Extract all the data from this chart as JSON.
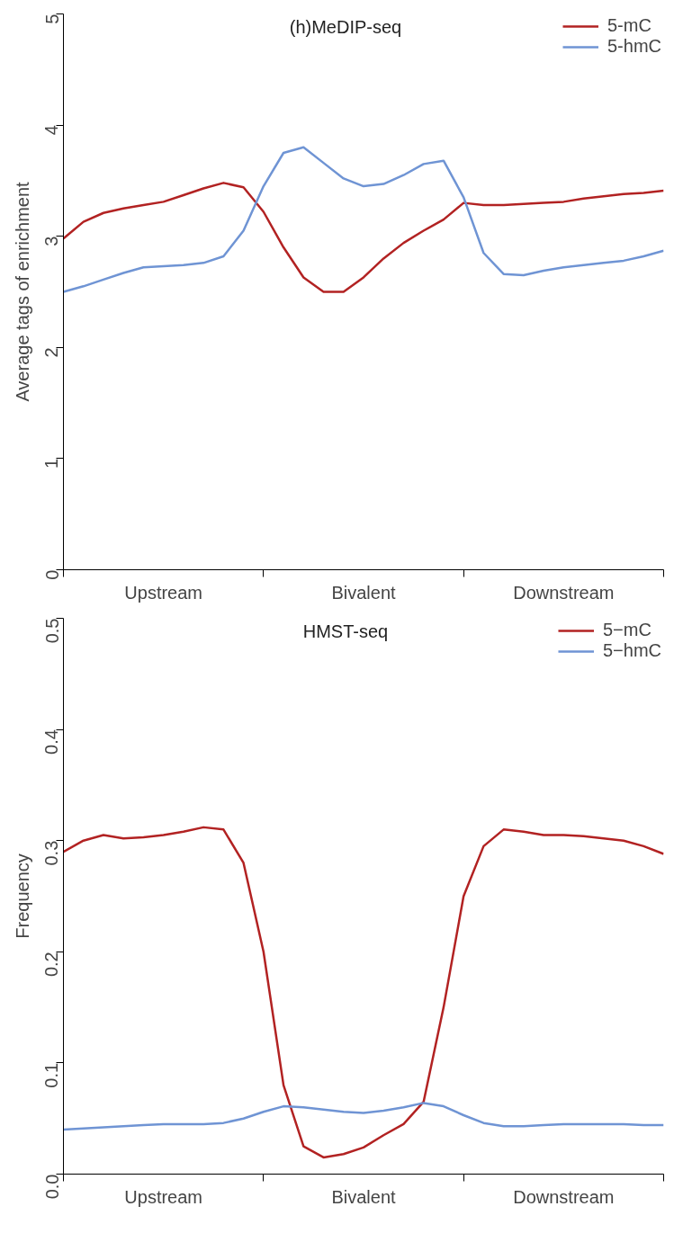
{
  "chart_data": [
    {
      "type": "line",
      "title": "(h)MeDIP-seq",
      "ylabel": "Average tags of enrichment",
      "ylim": [
        0,
        5
      ],
      "yticks": [
        0,
        1,
        2,
        3,
        4,
        5
      ],
      "categories": [
        null,
        null,
        null,
        null,
        null,
        null,
        null,
        null,
        null,
        null,
        null,
        null,
        null,
        null,
        null,
        null,
        null,
        null,
        null,
        null,
        null,
        null,
        null,
        null,
        null,
        null,
        null,
        null,
        null,
        null,
        null
      ],
      "annotations": [
        "Upstream",
        "Bivalent",
        "Downstream"
      ],
      "legend": "top right",
      "line_style": "solid",
      "series": [
        {
          "name": "5-mC",
          "color": "#b22222",
          "values": [
            2.98,
            3.13,
            3.21,
            3.25,
            3.28,
            3.31,
            3.37,
            3.43,
            3.48,
            3.44,
            3.22,
            2.9,
            2.63,
            2.5,
            2.5,
            2.63,
            2.8,
            2.94,
            3.05,
            3.15,
            3.3,
            3.28,
            3.28,
            3.29,
            3.3,
            3.31,
            3.34,
            3.36,
            3.38,
            3.39,
            3.41
          ]
        },
        {
          "name": "5-hmC",
          "color": "#6f94d4",
          "values": [
            2.5,
            2.55,
            2.61,
            2.67,
            2.72,
            2.73,
            2.74,
            2.76,
            2.82,
            3.05,
            3.45,
            3.75,
            3.8,
            3.66,
            3.52,
            3.45,
            3.47,
            3.55,
            3.65,
            3.68,
            3.35,
            2.85,
            2.66,
            2.65,
            2.69,
            2.72,
            2.74,
            2.76,
            2.78,
            2.82,
            2.87
          ]
        }
      ]
    },
    {
      "type": "line",
      "title": "HMST-seq",
      "ylabel": "Frequency",
      "ylim": [
        0,
        0.5
      ],
      "yticks": [
        {
          "value": 0,
          "label": "0.0"
        },
        0.1,
        0.2,
        0.3,
        0.4,
        0.5
      ],
      "categories": [
        null,
        null,
        null,
        null,
        null,
        null,
        null,
        null,
        null,
        null,
        null,
        null,
        null,
        null,
        null,
        null,
        null,
        null,
        null,
        null,
        null,
        null,
        null,
        null,
        null,
        null,
        null,
        null,
        null,
        null,
        null
      ],
      "annotations": [
        "Upstream",
        "Bivalent",
        "Downstream"
      ],
      "legend": "top right",
      "line_style": "solid",
      "series": [
        {
          "name": "5−mC",
          "color": "#b22222",
          "values": [
            0.29,
            0.3,
            0.305,
            0.302,
            0.303,
            0.305,
            0.308,
            0.312,
            0.31,
            0.28,
            0.2,
            0.08,
            0.025,
            0.015,
            0.018,
            0.024,
            0.035,
            0.045,
            0.065,
            0.15,
            0.25,
            0.295,
            0.31,
            0.308,
            0.305,
            0.305,
            0.304,
            0.302,
            0.3,
            0.295,
            0.288
          ]
        },
        {
          "name": "5−hmC",
          "color": "#6f94d4",
          "values": [
            0.04,
            0.041,
            0.042,
            0.043,
            0.044,
            0.045,
            0.045,
            0.045,
            0.046,
            0.05,
            0.056,
            0.061,
            0.06,
            0.058,
            0.056,
            0.055,
            0.057,
            0.06,
            0.064,
            0.061,
            0.053,
            0.046,
            0.043,
            0.043,
            0.044,
            0.045,
            0.045,
            0.045,
            0.045,
            0.044,
            0.044
          ]
        }
      ]
    }
  ]
}
